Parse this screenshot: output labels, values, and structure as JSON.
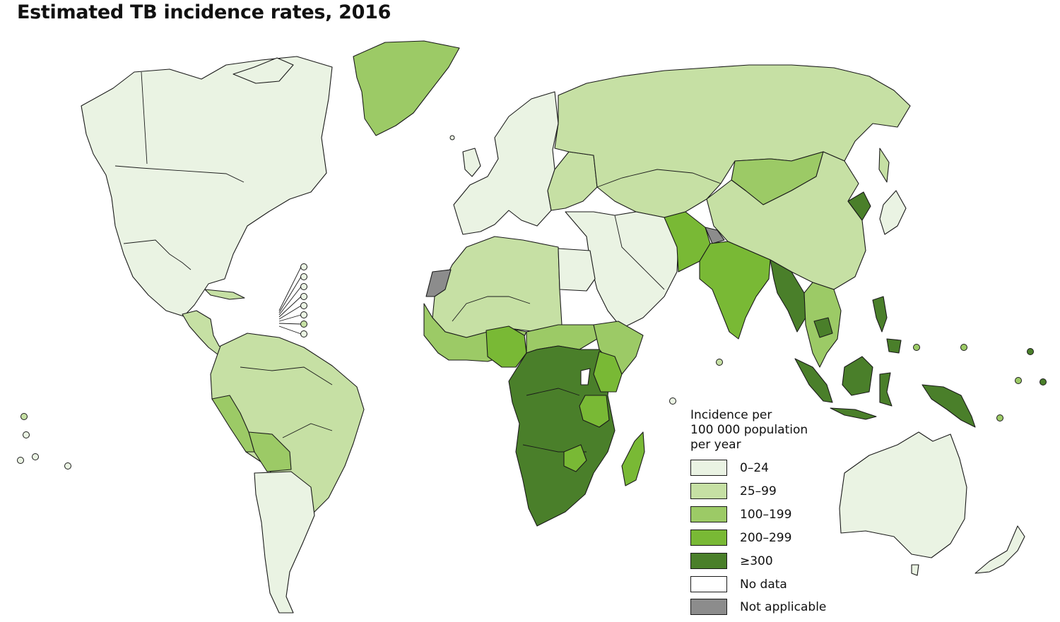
{
  "title": "Estimated TB incidence rates, 2016",
  "legend": {
    "title_lines": [
      "Incidence per",
      "100 000 population",
      "per year"
    ],
    "classes": [
      {
        "label": "0–24",
        "color": "#eaf3e3"
      },
      {
        "label": "25–99",
        "color": "#c6e0a4"
      },
      {
        "label": "100–199",
        "color": "#9cca66"
      },
      {
        "label": "200–299",
        "color": "#79b935"
      },
      {
        "label": "≥300",
        "color": "#4a7f2a"
      },
      {
        "label": "No data",
        "color": "#ffffff"
      },
      {
        "label": "Not applicable",
        "color": "#8c8c8c"
      }
    ]
  },
  "regions": [
    {
      "name": "North America",
      "class": "0–24"
    },
    {
      "name": "Greenland",
      "class": "100–199"
    },
    {
      "name": "Central America",
      "class": "25–99"
    },
    {
      "name": "South America",
      "class": "25–99"
    },
    {
      "name": "Peru",
      "class": "100–199"
    },
    {
      "name": "Bolivia",
      "class": "100–199"
    },
    {
      "name": "Chile and Argentina",
      "class": "0–24"
    },
    {
      "name": "Europe",
      "class": "0–24"
    },
    {
      "name": "Eastern Europe",
      "class": "25–99"
    },
    {
      "name": "Russia and Central Asia",
      "class": "25–99"
    },
    {
      "name": "Mongolia",
      "class": "100–199"
    },
    {
      "name": "China",
      "class": "25–99"
    },
    {
      "name": "North Korea",
      "class": "≥300"
    },
    {
      "name": "Japan",
      "class": "0–24"
    },
    {
      "name": "Middle East",
      "class": "0–24"
    },
    {
      "name": "Pakistan",
      "class": "200–299"
    },
    {
      "name": "India",
      "class": "200–299"
    },
    {
      "name": "Myanmar",
      "class": "≥300"
    },
    {
      "name": "Indochina",
      "class": "100–199"
    },
    {
      "name": "Cambodia",
      "class": "≥300"
    },
    {
      "name": "Philippines",
      "class": "≥300"
    },
    {
      "name": "Indonesia",
      "class": "≥300"
    },
    {
      "name": "Papua New Guinea",
      "class": "≥300"
    },
    {
      "name": "Australia",
      "class": "0–24"
    },
    {
      "name": "New Zealand",
      "class": "0–24"
    },
    {
      "name": "North Africa",
      "class": "25–99"
    },
    {
      "name": "Egypt",
      "class": "0–24"
    },
    {
      "name": "Western Sahara",
      "class": "Not applicable"
    },
    {
      "name": "West Africa",
      "class": "100–199"
    },
    {
      "name": "Nigeria",
      "class": "200–299"
    },
    {
      "name": "Horn of Africa",
      "class": "100–199"
    },
    {
      "name": "Central and Southern Africa",
      "class": "≥300"
    },
    {
      "name": "Kenya",
      "class": "200–299"
    },
    {
      "name": "Tanzania",
      "class": "200–299"
    },
    {
      "name": "Zimbabwe",
      "class": "200–299"
    },
    {
      "name": "Madagascar",
      "class": "200–299"
    },
    {
      "name": "Kashmir",
      "class": "Not applicable"
    }
  ]
}
